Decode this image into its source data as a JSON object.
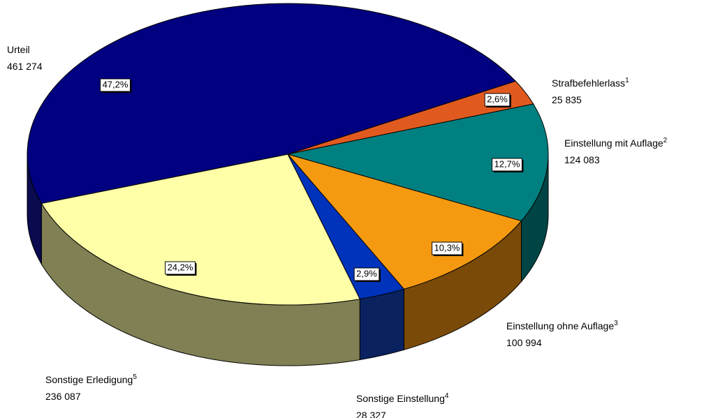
{
  "chart_data": {
    "type": "pie",
    "categories": [
      "Urteil",
      "Strafbefehlerlass",
      "Einstellung mit Auflage",
      "Einstellung ohne Auflage",
      "Sonstige Einstellung",
      "Sonstige Erledigung"
    ],
    "notes": [
      null,
      "1",
      "2",
      "3",
      "4",
      "5"
    ],
    "values": [
      461274,
      25835,
      124083,
      100994,
      28327,
      236087
    ],
    "value_labels": [
      "461 274",
      "25 835",
      "124 083",
      "100 994",
      "28 327",
      "236 087"
    ],
    "percent_labels": [
      "47,2%",
      "2,6%",
      "12,7%",
      "10,3%",
      "2,9%",
      "24,2%"
    ],
    "colors": [
      "#000080",
      "#e05a20",
      "#008080",
      "#f59a10",
      "#0033bb",
      "#ffffa8"
    ],
    "side_colors": [
      "#0a0a50",
      "#8a3010",
      "#004545",
      "#7a4a08",
      "#0a2260",
      "#808054"
    ]
  }
}
